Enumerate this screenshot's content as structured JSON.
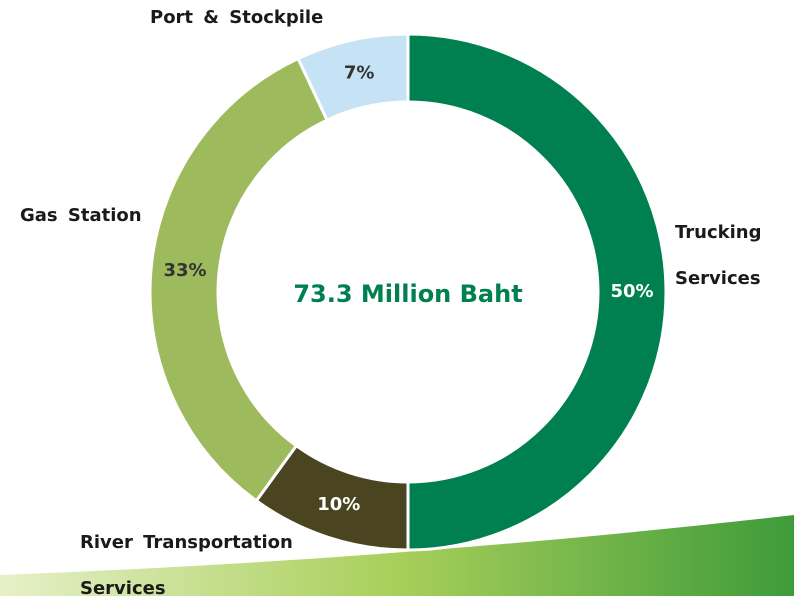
{
  "chart_data": {
    "type": "donut",
    "title": "73.3 Million Baht",
    "categories": [
      "Trucking Services",
      "River Transportation Services",
      "Gas Station",
      "Port & Stockpile"
    ],
    "values": [
      50,
      10,
      33,
      7
    ],
    "value_labels": [
      "50%",
      "10%",
      "33%",
      "7%"
    ],
    "colors": [
      "#008051",
      "#4a4520",
      "#9dbb5c",
      "#c5e3f5"
    ]
  }
}
